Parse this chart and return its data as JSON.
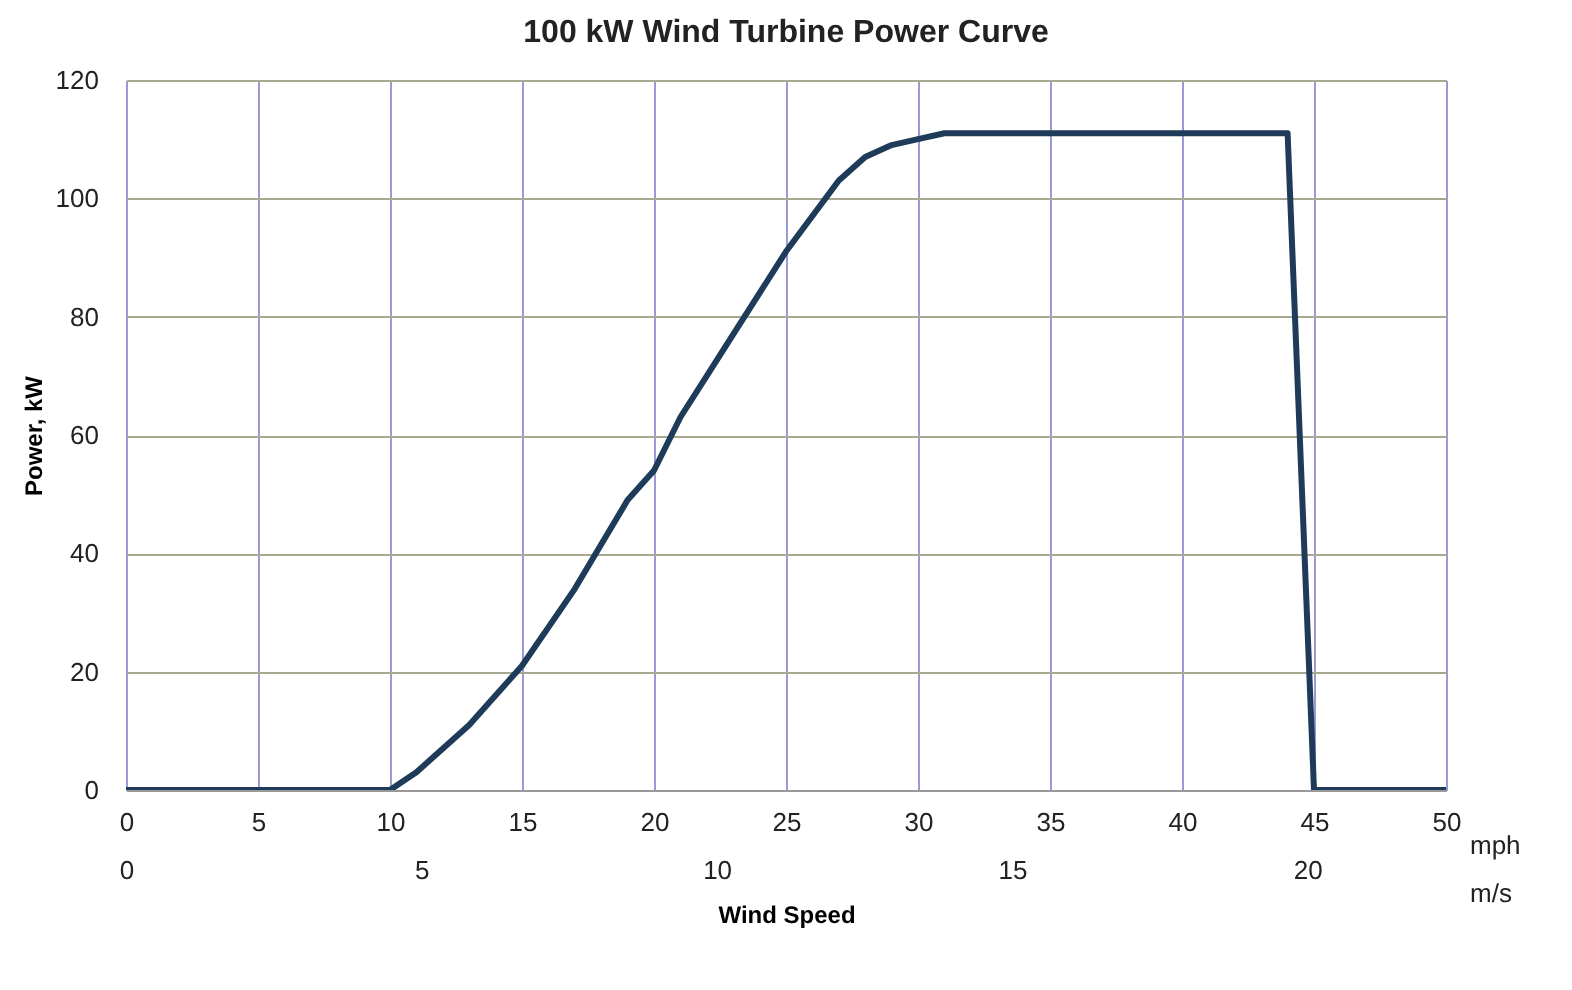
{
  "chart_data": {
    "type": "line",
    "title": "100 kW Wind Turbine Power Curve",
    "xlabel": "Wind Speed",
    "ylabel": "Power, kW",
    "x": [
      0,
      10,
      11,
      13,
      15,
      17,
      19,
      20,
      21,
      22,
      23,
      25,
      26,
      27,
      28,
      29,
      30,
      31,
      32,
      44,
      45,
      50
    ],
    "series": [
      {
        "color": "#1f3b5a",
        "values": [
          0,
          0,
          3,
          11,
          21,
          34,
          49,
          54,
          63,
          70,
          77,
          91,
          97,
          103,
          107,
          109,
          110,
          111,
          111,
          111,
          0,
          0
        ]
      }
    ],
    "xlim": [
      0,
      50
    ],
    "xticks": [
      0,
      5,
      10,
      15,
      20,
      25,
      30,
      35,
      40,
      45,
      50
    ],
    "x2lim": [
      0,
      22.35
    ],
    "x2ticks": [
      0,
      5,
      10,
      15,
      20
    ],
    "ylim": [
      0,
      120
    ],
    "yticks": [
      0,
      20,
      40,
      60,
      80,
      100,
      120
    ],
    "annotations": [
      "mph",
      "m/s"
    ],
    "grid": true,
    "marker": "none",
    "line_style": "solid"
  }
}
